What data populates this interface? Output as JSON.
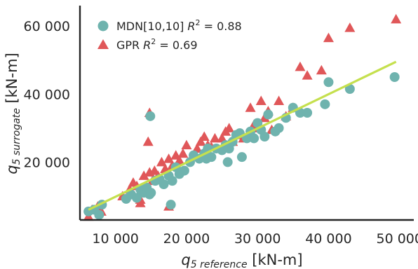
{
  "chart_data": {
    "type": "scatter",
    "xlabel": {
      "base": "q",
      "sub": "5 reference",
      "unit": " [kN-m]"
    },
    "ylabel": {
      "base": "q",
      "sub": "5 surrogate",
      "unit": " [kN-m]"
    },
    "xlim": [
      5000,
      52000
    ],
    "ylim": [
      3000,
      66000
    ],
    "x_ticks": [
      10000,
      20000,
      30000,
      40000,
      50000
    ],
    "x_tick_labels": [
      "10 000",
      "20 000",
      "30 000",
      "40 000",
      "50 000"
    ],
    "y_ticks": [
      20000,
      40000,
      60000
    ],
    "y_tick_labels": [
      "20 000",
      "40 000",
      "60 000"
    ],
    "grid": false,
    "legend_position": "top-left",
    "series": [
      {
        "name": "MDN[10,10]",
        "r2": "0.88",
        "marker": "circle",
        "color": "#6fb3ae",
        "x": [
          6200,
          7000,
          7700,
          8100,
          11500,
          12200,
          13000,
          13500,
          14000,
          14400,
          14800,
          15000,
          15600,
          16200,
          16800,
          17500,
          18000,
          18500,
          19000,
          19700,
          20500,
          21000,
          21800,
          22500,
          23000,
          23500,
          24200,
          25000,
          25500,
          26000,
          26500,
          27000,
          27500,
          28500,
          29000,
          29500,
          30000,
          30500,
          31000,
          31500,
          32500,
          33000,
          34000,
          35000,
          36000,
          37000,
          39500,
          40000,
          43000,
          49300,
          14900,
          17800,
          22800,
          27800,
          25800
        ],
        "y": [
          5500,
          6000,
          4500,
          7500,
          9200,
          10500,
          9500,
          12000,
          11000,
          12500,
          10500,
          11000,
          14500,
          15000,
          13500,
          16000,
          14500,
          18500,
          16500,
          17500,
          20000,
          22000,
          21000,
          22500,
          24000,
          21500,
          24000,
          23500,
          25000,
          24000,
          26000,
          28000,
          28500,
          27000,
          29000,
          27000,
          31500,
          29500,
          27500,
          34000,
          29000,
          30000,
          33000,
          36000,
          34500,
          34500,
          37000,
          43500,
          41500,
          45000,
          33500,
          7500,
          21000,
          21500,
          20000
        ]
      },
      {
        "name": "GPR",
        "r2": "0.69",
        "marker": "triangle",
        "color": "#e05759",
        "x": [
          6200,
          6700,
          7500,
          8000,
          11000,
          12000,
          12500,
          13000,
          13500,
          14000,
          14500,
          14800,
          15200,
          15500,
          16000,
          16500,
          17000,
          17500,
          18000,
          18500,
          19000,
          19500,
          20000,
          21000,
          21500,
          22000,
          22500,
          23000,
          23500,
          24000,
          25000,
          25500,
          26000,
          26500,
          27000,
          28000,
          29000,
          29500,
          30000,
          30500,
          31000,
          31500,
          32000,
          33000,
          34000,
          35000,
          36000,
          37000,
          39000,
          40000,
          43000,
          49500,
          14800,
          14600,
          17500,
          13500
        ],
        "y": [
          4000,
          6000,
          7000,
          5500,
          10000,
          12000,
          14000,
          13000,
          9000,
          16000,
          12000,
          17000,
          14500,
          17500,
          16000,
          20000,
          18000,
          21000,
          19000,
          22000,
          20500,
          22500,
          25000,
          22000,
          24000,
          26000,
          27500,
          25000,
          24500,
          27000,
          27000,
          29000,
          30000,
          26000,
          28000,
          27000,
          36000,
          31000,
          30000,
          38000,
          33000,
          35000,
          29500,
          38000,
          33500,
          36000,
          48000,
          45500,
          47000,
          56500,
          59500,
          62000,
          34500,
          26000,
          7000,
          8000
        ]
      }
    ],
    "fit_line": {
      "color": "#c5e04e",
      "x": [
        6200,
        49500
      ],
      "y": [
        6000,
        49500
      ]
    }
  }
}
